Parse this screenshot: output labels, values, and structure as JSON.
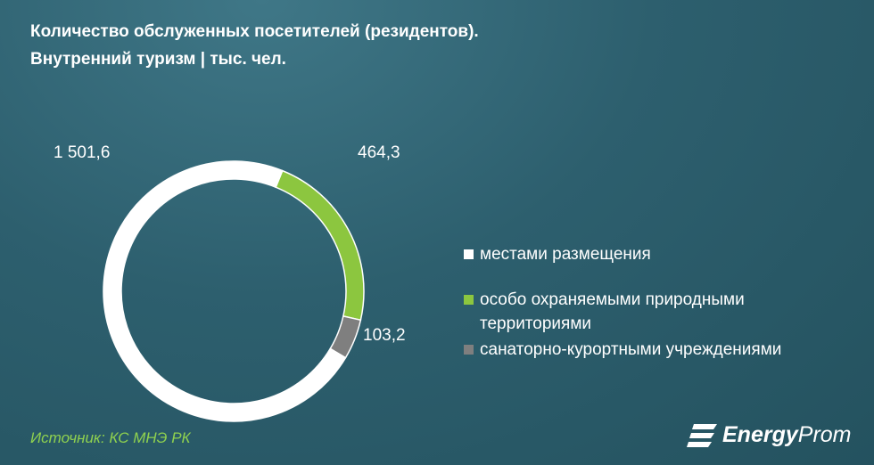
{
  "header": {
    "title_line1": "Количество обслуженных посетителей (резидентов).",
    "title_line2": "Внутренний туризм | тыс. чел."
  },
  "chart_data": {
    "type": "pie",
    "style": "donut",
    "categories": [
      "местами размещения",
      "особо охраняемыми природными территориями",
      "санаторно-курортными учреждениями"
    ],
    "values": [
      1501.6,
      464.3,
      103.2
    ],
    "value_labels": [
      "1 501,6",
      "464,3",
      "103,2"
    ],
    "colors": [
      "#ffffff",
      "#8cc63f",
      "#7f7f7f"
    ],
    "legend_position": "right"
  },
  "legend": {
    "item1": "местами размещения",
    "item2_line1": "особо охраняемыми природными",
    "item2_line2": "территориями",
    "item3": "санаторно-курортными учреждениями"
  },
  "footer": {
    "source": "Источник: КС МНЭ РК",
    "logo_text_bold": "Energy",
    "logo_text_light": "Prom"
  },
  "colors": {
    "background": "#2d5f6e",
    "source_text": "#8fd14f"
  }
}
